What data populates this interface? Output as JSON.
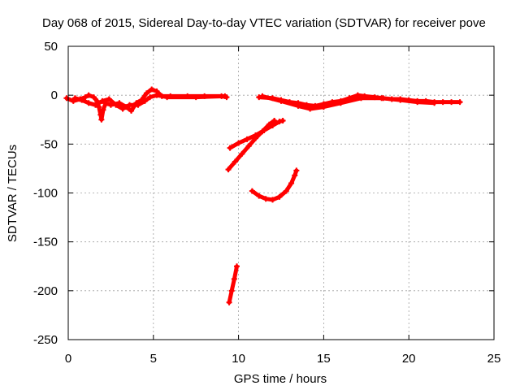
{
  "chart_data": {
    "type": "scatter",
    "title": "Day 068 of 2015, Sidereal Day-to-day VTEC variation (SDTVAR) for receiver pove",
    "xlabel": "GPS time / hours",
    "ylabel": "SDTVAR / TECUs",
    "xlim": [
      0,
      25
    ],
    "ylim": [
      -250,
      50
    ],
    "xticks": [
      0,
      5,
      10,
      15,
      20,
      25
    ],
    "yticks": [
      -250,
      -200,
      -150,
      -100,
      -50,
      0,
      50
    ],
    "grid": true,
    "legend": "none",
    "series": [
      {
        "color": "#ff0000",
        "segments": [
          [
            [
              -0.1,
              -3
            ],
            [
              0.3,
              -6
            ],
            [
              0.7,
              -4
            ],
            [
              1.0,
              -2
            ],
            [
              1.2,
              0
            ],
            [
              1.5,
              -2
            ],
            [
              1.7,
              -6
            ],
            [
              1.8,
              -12
            ],
            [
              1.9,
              -20
            ],
            [
              1.95,
              -25
            ],
            [
              2.05,
              -15
            ],
            [
              2.2,
              -8
            ],
            [
              2.5,
              -10
            ],
            [
              3.0,
              -8
            ],
            [
              3.4,
              -12
            ],
            [
              3.7,
              -16
            ],
            [
              4.0,
              -8
            ],
            [
              4.3,
              -5
            ],
            [
              4.6,
              2
            ],
            [
              4.9,
              6
            ],
            [
              5.2,
              4
            ],
            [
              5.5,
              -1
            ],
            [
              6.0,
              -1
            ],
            [
              7.0,
              -1
            ],
            [
              8.0,
              -1
            ],
            [
              9.0,
              -1
            ],
            [
              9.3,
              -2
            ]
          ],
          [
            [
              0.4,
              -3
            ],
            [
              0.8,
              -5
            ],
            [
              1.2,
              -8
            ],
            [
              1.6,
              -10
            ],
            [
              2.0,
              -6
            ],
            [
              2.4,
              -4
            ],
            [
              2.8,
              -10
            ],
            [
              3.2,
              -14
            ],
            [
              3.6,
              -10
            ],
            [
              4.1,
              -10
            ],
            [
              4.5,
              -6
            ],
            [
              4.8,
              -2
            ],
            [
              5.2,
              0
            ],
            [
              5.8,
              -2
            ],
            [
              7.5,
              -2
            ],
            [
              9.2,
              -1
            ]
          ],
          [
            [
              11.2,
              -2
            ],
            [
              12.0,
              -3
            ],
            [
              12.5,
              -5
            ],
            [
              13.0,
              -7
            ],
            [
              13.5,
              -8
            ],
            [
              14.0,
              -10
            ],
            [
              14.5,
              -11
            ],
            [
              15.0,
              -9
            ],
            [
              15.5,
              -7
            ],
            [
              16.0,
              -6
            ],
            [
              16.5,
              -3
            ],
            [
              17.0,
              0
            ],
            [
              17.4,
              -1
            ],
            [
              18.0,
              -2
            ],
            [
              18.5,
              -3
            ],
            [
              19.0,
              -4
            ],
            [
              19.5,
              -4
            ],
            [
              20.0,
              -5
            ],
            [
              20.5,
              -6
            ],
            [
              21.0,
              -6
            ],
            [
              21.5,
              -7
            ],
            [
              22.0,
              -7
            ],
            [
              22.5,
              -7
            ],
            [
              23.0,
              -7
            ]
          ],
          [
            [
              11.4,
              -1
            ],
            [
              12.5,
              -6
            ],
            [
              13.5,
              -11
            ],
            [
              14.2,
              -14
            ],
            [
              15.0,
              -12
            ],
            [
              16.0,
              -8
            ],
            [
              17.2,
              -3
            ],
            [
              18.4,
              -3
            ],
            [
              19.5,
              -5
            ],
            [
              20.5,
              -7
            ],
            [
              21.5,
              -8
            ]
          ],
          [
            [
              9.5,
              -54
            ],
            [
              10.0,
              -49
            ],
            [
              10.5,
              -45
            ],
            [
              11.0,
              -41
            ],
            [
              11.5,
              -36
            ],
            [
              12.0,
              -31
            ],
            [
              12.4,
              -27
            ],
            [
              12.6,
              -26
            ]
          ],
          [
            [
              9.4,
              -76
            ],
            [
              9.8,
              -68
            ],
            [
              10.2,
              -60
            ],
            [
              10.6,
              -52
            ],
            [
              11.0,
              -44
            ],
            [
              11.4,
              -37
            ],
            [
              11.8,
              -30
            ],
            [
              12.1,
              -26
            ]
          ],
          [
            [
              10.8,
              -98
            ],
            [
              11.2,
              -103
            ],
            [
              11.6,
              -106
            ],
            [
              12.0,
              -107
            ],
            [
              12.4,
              -104
            ],
            [
              12.8,
              -98
            ],
            [
              13.1,
              -90
            ],
            [
              13.3,
              -82
            ],
            [
              13.4,
              -77
            ]
          ],
          [
            [
              9.45,
              -212
            ],
            [
              9.6,
              -200
            ],
            [
              9.75,
              -188
            ],
            [
              9.9,
              -175
            ]
          ]
        ]
      }
    ]
  }
}
